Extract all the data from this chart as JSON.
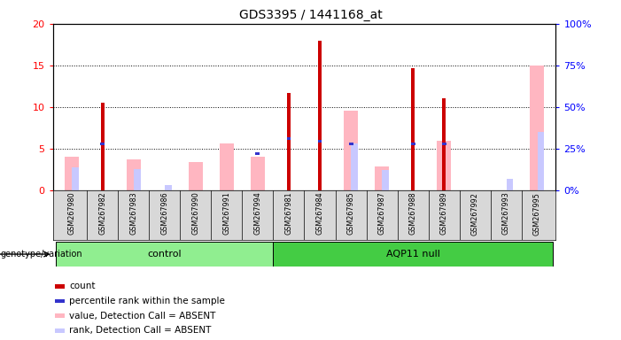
{
  "title": "GDS3395 / 1441168_at",
  "samples": [
    "GSM267980",
    "GSM267982",
    "GSM267983",
    "GSM267986",
    "GSM267990",
    "GSM267991",
    "GSM267994",
    "GSM267981",
    "GSM267984",
    "GSM267985",
    "GSM267987",
    "GSM267988",
    "GSM267989",
    "GSM267992",
    "GSM267993",
    "GSM267995"
  ],
  "count": [
    0,
    10.5,
    0,
    0,
    0,
    0,
    0,
    11.7,
    18.0,
    0,
    0,
    14.7,
    11.1,
    0,
    0,
    0
  ],
  "percentile_rank": [
    0,
    5.6,
    0,
    0,
    0,
    0,
    4.4,
    6.2,
    5.9,
    5.6,
    0,
    5.6,
    5.6,
    0,
    0,
    0
  ],
  "value_absent": [
    4.0,
    0,
    3.7,
    0,
    3.4,
    5.6,
    4.0,
    0,
    0,
    9.6,
    2.9,
    0,
    6.0,
    0,
    0,
    15.0
  ],
  "rank_absent": [
    2.8,
    0,
    2.6,
    0.6,
    0,
    0,
    0,
    0,
    0,
    5.6,
    2.5,
    0,
    0,
    0,
    1.4,
    7.0
  ],
  "groups": [
    {
      "label": "control",
      "start": 0,
      "end": 7,
      "color": "#90ee90"
    },
    {
      "label": "AQP11 null",
      "start": 7,
      "end": 16,
      "color": "#44cc44"
    }
  ],
  "ylim_left": [
    0,
    20
  ],
  "ylim_right": [
    0,
    100
  ],
  "yticks_left": [
    0,
    5,
    10,
    15,
    20
  ],
  "yticks_right": [
    0,
    25,
    50,
    75,
    100
  ],
  "color_count": "#cc0000",
  "color_percentile": "#3333cc",
  "color_value_absent": "#ffb6c1",
  "color_rank_absent": "#c8c8ff",
  "genotype_label": "genotype/variation",
  "legend_items": [
    {
      "color": "#cc0000",
      "label": "count"
    },
    {
      "color": "#3333cc",
      "label": "percentile rank within the sample"
    },
    {
      "color": "#ffb6c1",
      "label": "value, Detection Call = ABSENT"
    },
    {
      "color": "#c8c8ff",
      "label": "rank, Detection Call = ABSENT"
    }
  ]
}
